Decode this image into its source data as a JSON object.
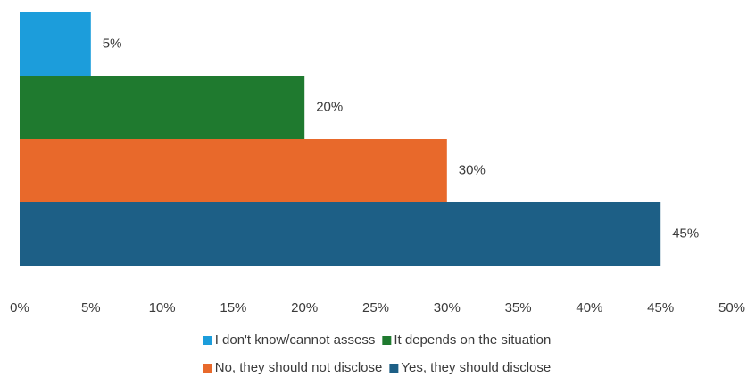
{
  "chart_data": {
    "type": "bar",
    "orientation": "horizontal",
    "series": [
      {
        "name": "I don't know/cannot assess",
        "color": "#1c9ddb",
        "values": [
          5
        ],
        "value_labels": [
          "5%"
        ]
      },
      {
        "name": "It depends on the situation",
        "color": "#1f7a2f",
        "values": [
          20
        ],
        "value_labels": [
          "20%"
        ]
      },
      {
        "name": "No, they should not disclose",
        "color": "#e8692b",
        "values": [
          30
        ],
        "value_labels": [
          "30%"
        ]
      },
      {
        "name": "Yes, they should disclose",
        "color": "#1d5f86",
        "values": [
          45
        ],
        "value_labels": [
          "45%"
        ]
      }
    ],
    "xlim": [
      0,
      50
    ],
    "xticks": [
      {
        "value": 0,
        "label": "0%"
      },
      {
        "value": 5,
        "label": "5%"
      },
      {
        "value": 10,
        "label": "10%"
      },
      {
        "value": 15,
        "label": "15%"
      },
      {
        "value": 20,
        "label": "20%"
      },
      {
        "value": 25,
        "label": "25%"
      },
      {
        "value": 30,
        "label": "30%"
      },
      {
        "value": 35,
        "label": "35%"
      },
      {
        "value": 40,
        "label": "40%"
      },
      {
        "value": 45,
        "label": "45%"
      },
      {
        "value": 50,
        "label": "50%"
      }
    ],
    "grid": false,
    "legend": "bottom"
  }
}
